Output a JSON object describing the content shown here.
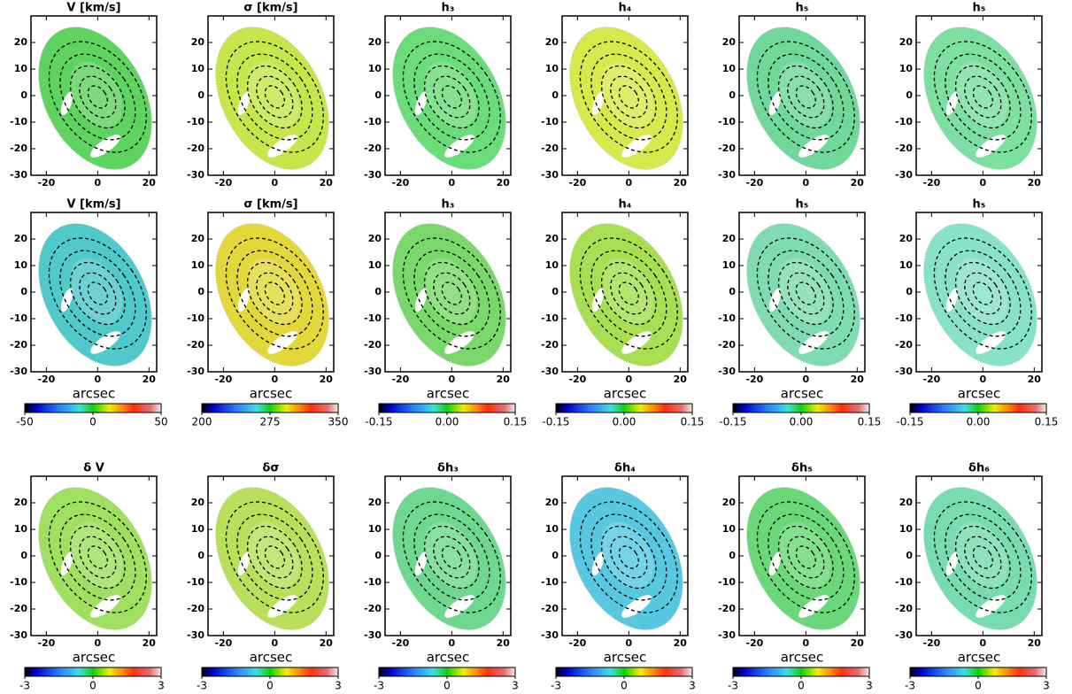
{
  "chart_data": [
    {
      "type": "map",
      "title": "V [km/s]",
      "color": "#5fd35f",
      "xlim": [
        -26,
        23
      ],
      "ylim": [
        -30,
        30
      ],
      "xticks": [
        -20,
        0,
        20
      ],
      "yticks": [
        -30,
        -20,
        -10,
        0,
        10,
        20
      ]
    },
    {
      "type": "map",
      "title": "σ [km/s]",
      "color": "#c8e64b",
      "xlim": [
        -26,
        23
      ],
      "ylim": [
        -30,
        30
      ],
      "xticks": [
        -20,
        0,
        20
      ],
      "yticks": [
        -30,
        -20,
        -10,
        0,
        10,
        20
      ]
    },
    {
      "type": "map",
      "title": "h₃",
      "color": "#6bdc7a",
      "xlim": [
        -26,
        23
      ],
      "ylim": [
        -30,
        30
      ],
      "xticks": [
        -20,
        0,
        20
      ],
      "yticks": [
        -30,
        -20,
        -10,
        0,
        10,
        20
      ]
    },
    {
      "type": "map",
      "title": "h₄",
      "color": "#d9e84a",
      "xlim": [
        -26,
        23
      ],
      "ylim": [
        -30,
        30
      ],
      "xticks": [
        -20,
        0,
        20
      ],
      "yticks": [
        -30,
        -20,
        -10,
        0,
        10,
        20
      ]
    },
    {
      "type": "map",
      "title": "h₅",
      "color": "#6fd89a",
      "xlim": [
        -26,
        23
      ],
      "ylim": [
        -30,
        30
      ],
      "xticks": [
        -20,
        0,
        20
      ],
      "yticks": [
        -30,
        -20,
        -10,
        0,
        10,
        20
      ]
    },
    {
      "type": "map",
      "title": "h₅",
      "color": "#7ddfa0",
      "xlim": [
        -26,
        23
      ],
      "ylim": [
        -30,
        30
      ],
      "xticks": [
        -20,
        0,
        20
      ],
      "yticks": [
        -30,
        -20,
        -10,
        0,
        10,
        20
      ]
    },
    {
      "type": "map",
      "title": "V [km/s]",
      "color": "#4fc9c9",
      "xlim": [
        -26,
        23
      ],
      "ylim": [
        -30,
        30
      ],
      "xticks": [
        -20,
        0,
        20
      ],
      "yticks": [
        -30,
        -20,
        -10,
        0,
        10,
        20
      ],
      "xlabel": "arcsec",
      "colorbar": {
        "lim": [
          -50,
          50
        ],
        "ticks": [
          -50,
          0,
          50
        ]
      }
    },
    {
      "type": "map",
      "title": "σ [km/s]",
      "color": "#e3d83a",
      "xlim": [
        -26,
        23
      ],
      "ylim": [
        -30,
        30
      ],
      "xticks": [
        -20,
        0,
        20
      ],
      "yticks": [
        -30,
        -20,
        -10,
        0,
        10,
        20
      ],
      "xlabel": "arcsec",
      "colorbar": {
        "lim": [
          200,
          350
        ],
        "ticks": [
          200,
          275,
          350
        ]
      }
    },
    {
      "type": "map",
      "title": "h₃",
      "color": "#7ad86a",
      "xlim": [
        -26,
        23
      ],
      "ylim": [
        -30,
        30
      ],
      "xticks": [
        -20,
        0,
        20
      ],
      "yticks": [
        -30,
        -20,
        -10,
        0,
        10,
        20
      ],
      "xlabel": "arcsec",
      "colorbar": {
        "lim": [
          -0.15,
          0.15
        ],
        "ticks": [
          -0.15,
          {
            "value": 0,
            "label": "0.00"
          },
          0.15
        ]
      }
    },
    {
      "type": "map",
      "title": "h₄",
      "color": "#a8df52",
      "xlim": [
        -26,
        23
      ],
      "ylim": [
        -30,
        30
      ],
      "xticks": [
        -20,
        0,
        20
      ],
      "yticks": [
        -30,
        -20,
        -10,
        0,
        10,
        20
      ],
      "xlabel": "arcsec",
      "colorbar": {
        "lim": [
          -0.15,
          0.15
        ],
        "ticks": [
          -0.15,
          {
            "value": 0,
            "label": "0.00"
          },
          0.15
        ]
      }
    },
    {
      "type": "map",
      "title": "h₅",
      "color": "#7fdcb0",
      "xlim": [
        -26,
        23
      ],
      "ylim": [
        -30,
        30
      ],
      "xticks": [
        -20,
        0,
        20
      ],
      "yticks": [
        -30,
        -20,
        -10,
        0,
        10,
        20
      ],
      "xlabel": "arcsec",
      "colorbar": {
        "lim": [
          -0.15,
          0.15
        ],
        "ticks": [
          -0.15,
          {
            "value": 0,
            "label": "0.00"
          },
          0.15
        ]
      }
    },
    {
      "type": "map",
      "title": "h₅",
      "color": "#88e2c8",
      "xlim": [
        -26,
        23
      ],
      "ylim": [
        -30,
        30
      ],
      "xticks": [
        -20,
        0,
        20
      ],
      "yticks": [
        -30,
        -20,
        -10,
        0,
        10,
        20
      ],
      "xlabel": "arcsec",
      "colorbar": {
        "lim": [
          -0.15,
          0.15
        ],
        "ticks": [
          -0.15,
          {
            "value": 0,
            "label": "0.00"
          },
          0.15
        ]
      }
    },
    {
      "type": "map",
      "title": "δ V",
      "color": "#9fe060",
      "xlim": [
        -26,
        23
      ],
      "ylim": [
        -30,
        30
      ],
      "xticks": [
        -20,
        0,
        20
      ],
      "yticks": [
        -30,
        -20,
        -10,
        0,
        10,
        20
      ],
      "xlabel": "arcsec",
      "colorbar": {
        "lim": [
          -3,
          3
        ],
        "ticks": [
          -3,
          0,
          3
        ]
      }
    },
    {
      "type": "map",
      "title": "δσ",
      "color": "#b8e05a",
      "xlim": [
        -26,
        23
      ],
      "ylim": [
        -30,
        30
      ],
      "xticks": [
        -20,
        0,
        20
      ],
      "yticks": [
        -30,
        -20,
        -10,
        0,
        10,
        20
      ],
      "xlabel": "arcsec",
      "colorbar": {
        "lim": [
          -3,
          3
        ],
        "ticks": [
          -3,
          0,
          3
        ]
      }
    },
    {
      "type": "map",
      "title": "δh₃",
      "color": "#6fd890",
      "xlim": [
        -26,
        23
      ],
      "ylim": [
        -30,
        30
      ],
      "xticks": [
        -20,
        0,
        20
      ],
      "yticks": [
        -30,
        -20,
        -10,
        0,
        10,
        20
      ],
      "xlabel": "arcsec",
      "colorbar": {
        "lim": [
          -3,
          3
        ],
        "ticks": [
          -3,
          0,
          3
        ]
      }
    },
    {
      "type": "map",
      "title": "δh₄",
      "color": "#58c8e0",
      "xlim": [
        -26,
        23
      ],
      "ylim": [
        -30,
        30
      ],
      "xticks": [
        -20,
        0,
        20
      ],
      "yticks": [
        -30,
        -20,
        -10,
        0,
        10,
        20
      ],
      "xlabel": "arcsec",
      "colorbar": {
        "lim": [
          -3,
          3
        ],
        "ticks": [
          -3,
          0,
          3
        ]
      }
    },
    {
      "type": "map",
      "title": "δh₅",
      "color": "#6ad878",
      "xlim": [
        -26,
        23
      ],
      "ylim": [
        -30,
        30
      ],
      "xticks": [
        -20,
        0,
        20
      ],
      "yticks": [
        -30,
        -20,
        -10,
        0,
        10,
        20
      ],
      "xlabel": "arcsec",
      "colorbar": {
        "lim": [
          -3,
          3
        ],
        "ticks": [
          -3,
          0,
          3
        ]
      }
    },
    {
      "type": "map",
      "title": "δh₆",
      "color": "#78dcb0",
      "xlim": [
        -26,
        23
      ],
      "ylim": [
        -30,
        30
      ],
      "xticks": [
        -20,
        0,
        20
      ],
      "yticks": [
        -30,
        -20,
        -10,
        0,
        10,
        20
      ],
      "xlabel": "arcsec",
      "colorbar": {
        "lim": [
          -3,
          3
        ],
        "ticks": [
          -3,
          0,
          3
        ]
      }
    }
  ]
}
